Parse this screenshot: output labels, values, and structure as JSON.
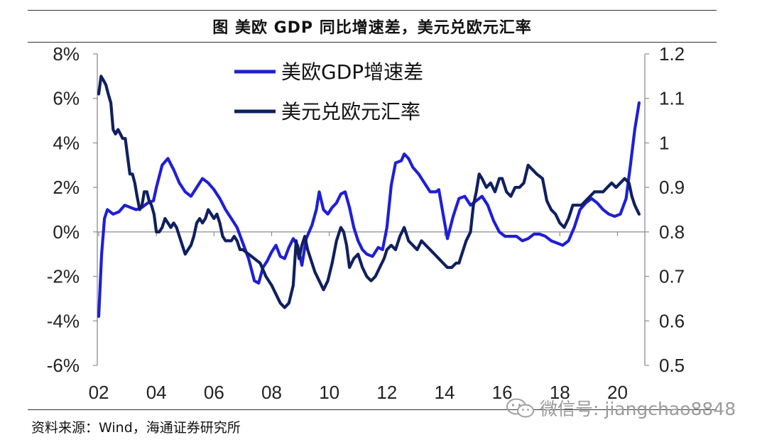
{
  "header": {
    "title": "图  美欧 GDP 同比增速差，美元兑欧元汇率"
  },
  "footer": {
    "source": "资料来源：Wind，海通证券研究所",
    "watermark": "微信号: jiangchao8848",
    "watermark_icon": "wechat-icon"
  },
  "colors": {
    "gdp_series": "#1f1fd6",
    "fx_series": "#10205e",
    "axis": "#8c8c8c",
    "text": "#222222"
  },
  "chart_data": {
    "type": "line",
    "x_tick_labels": [
      "02",
      "04",
      "06",
      "08",
      "10",
      "12",
      "14",
      "16",
      "18",
      "20"
    ],
    "x_ticks": [
      2002,
      2004,
      2006,
      2008,
      2010,
      2012,
      2014,
      2016,
      2018,
      2020
    ],
    "xlim": [
      2001.95,
      2020.95
    ],
    "y_left": {
      "ylim": [
        -6,
        8
      ],
      "ticks": [
        -6,
        -4,
        -2,
        0,
        2,
        4,
        6,
        8
      ],
      "tick_labels": [
        "-6%",
        "-4%",
        "-2%",
        "0%",
        "2%",
        "4%",
        "6%",
        "8%"
      ]
    },
    "y_right": {
      "ylim": [
        0.5,
        1.2
      ],
      "ticks": [
        0.5,
        0.6,
        0.7,
        0.8,
        0.9,
        1.0,
        1.1,
        1.2
      ],
      "tick_labels": [
        "0.5",
        "0.6",
        "0.7",
        "0.8",
        "0.9",
        "1",
        "1.1",
        "1.2"
      ]
    },
    "legend_position": "top-center",
    "grid": false,
    "series": [
      {
        "name": "美欧GDP增速差",
        "axis": "left",
        "color": "#1f1fd6",
        "points": [
          [
            2002.0,
            -3.8
          ],
          [
            2002.1,
            -1.0
          ],
          [
            2002.2,
            0.6
          ],
          [
            2002.3,
            1.0
          ],
          [
            2002.5,
            0.8
          ],
          [
            2002.7,
            0.9
          ],
          [
            2002.9,
            1.2
          ],
          [
            2003.1,
            1.1
          ],
          [
            2003.3,
            1.0
          ],
          [
            2003.5,
            1.1
          ],
          [
            2003.7,
            1.3
          ],
          [
            2003.9,
            1.4
          ],
          [
            2004.0,
            2.0
          ],
          [
            2004.2,
            3.0
          ],
          [
            2004.4,
            3.3
          ],
          [
            2004.6,
            2.8
          ],
          [
            2004.8,
            2.2
          ],
          [
            2005.0,
            1.8
          ],
          [
            2005.2,
            1.6
          ],
          [
            2005.4,
            2.0
          ],
          [
            2005.6,
            2.4
          ],
          [
            2005.8,
            2.2
          ],
          [
            2006.0,
            1.9
          ],
          [
            2006.2,
            1.5
          ],
          [
            2006.4,
            1.0
          ],
          [
            2006.6,
            0.6
          ],
          [
            2006.8,
            0.2
          ],
          [
            2007.0,
            -0.5
          ],
          [
            2007.2,
            -1.2
          ],
          [
            2007.4,
            -2.2
          ],
          [
            2007.55,
            -2.3
          ],
          [
            2007.7,
            -1.6
          ],
          [
            2007.85,
            -1.3
          ],
          [
            2008.0,
            -0.9
          ],
          [
            2008.15,
            -0.6
          ],
          [
            2008.3,
            -1.1
          ],
          [
            2008.45,
            -1.2
          ],
          [
            2008.6,
            -0.7
          ],
          [
            2008.75,
            -0.3
          ],
          [
            2008.9,
            -0.6
          ],
          [
            2009.05,
            -1.5
          ],
          [
            2009.2,
            -0.3
          ],
          [
            2009.4,
            0.3
          ],
          [
            2009.55,
            1.0
          ],
          [
            2009.65,
            1.8
          ],
          [
            2009.8,
            1.0
          ],
          [
            2009.95,
            0.8
          ],
          [
            2010.1,
            1.1
          ],
          [
            2010.25,
            1.3
          ],
          [
            2010.4,
            1.7
          ],
          [
            2010.55,
            1.8
          ],
          [
            2010.7,
            1.1
          ],
          [
            2010.85,
            0.2
          ],
          [
            2011.0,
            -0.4
          ],
          [
            2011.15,
            -0.8
          ],
          [
            2011.3,
            -1.0
          ],
          [
            2011.5,
            -1.1
          ],
          [
            2011.7,
            -0.7
          ],
          [
            2011.85,
            -0.8
          ],
          [
            2012.0,
            0.2
          ],
          [
            2012.15,
            2.1
          ],
          [
            2012.3,
            3.1
          ],
          [
            2012.5,
            3.2
          ],
          [
            2012.6,
            3.5
          ],
          [
            2012.75,
            3.3
          ],
          [
            2012.9,
            2.9
          ],
          [
            2013.1,
            2.6
          ],
          [
            2013.3,
            2.2
          ],
          [
            2013.5,
            1.8
          ],
          [
            2013.7,
            1.8
          ],
          [
            2013.8,
            1.9
          ],
          [
            2013.95,
            0.8
          ],
          [
            2014.1,
            -0.3
          ],
          [
            2014.3,
            0.7
          ],
          [
            2014.5,
            1.5
          ],
          [
            2014.7,
            1.6
          ],
          [
            2014.9,
            1.2
          ],
          [
            2015.1,
            1.4
          ],
          [
            2015.3,
            1.6
          ],
          [
            2015.5,
            1.2
          ],
          [
            2015.7,
            0.5
          ],
          [
            2015.9,
            0.0
          ],
          [
            2016.1,
            -0.2
          ],
          [
            2016.3,
            -0.2
          ],
          [
            2016.5,
            -0.2
          ],
          [
            2016.7,
            -0.4
          ],
          [
            2016.9,
            -0.3
          ],
          [
            2017.1,
            -0.1
          ],
          [
            2017.3,
            -0.1
          ],
          [
            2017.5,
            -0.2
          ],
          [
            2017.7,
            -0.4
          ],
          [
            2017.9,
            -0.5
          ],
          [
            2018.1,
            -0.6
          ],
          [
            2018.3,
            -0.4
          ],
          [
            2018.5,
            0.2
          ],
          [
            2018.7,
            1.0
          ],
          [
            2018.9,
            1.3
          ],
          [
            2019.1,
            1.5
          ],
          [
            2019.3,
            1.3
          ],
          [
            2019.5,
            1.0
          ],
          [
            2019.7,
            0.8
          ],
          [
            2019.9,
            0.7
          ],
          [
            2020.1,
            0.8
          ],
          [
            2020.3,
            1.5
          ],
          [
            2020.45,
            3.0
          ],
          [
            2020.6,
            4.6
          ],
          [
            2020.75,
            5.8
          ]
        ]
      },
      {
        "name": "美元兑欧元汇率",
        "axis": "right",
        "color": "#10205e",
        "points": [
          [
            2002.0,
            1.11
          ],
          [
            2002.08,
            1.15
          ],
          [
            2002.17,
            1.14
          ],
          [
            2002.25,
            1.13
          ],
          [
            2002.33,
            1.11
          ],
          [
            2002.42,
            1.09
          ],
          [
            2002.5,
            1.03
          ],
          [
            2002.58,
            1.02
          ],
          [
            2002.67,
            1.03
          ],
          [
            2002.75,
            1.02
          ],
          [
            2002.83,
            1.01
          ],
          [
            2002.92,
            1.01
          ],
          [
            2003.0,
            0.97
          ],
          [
            2003.08,
            0.93
          ],
          [
            2003.17,
            0.93
          ],
          [
            2003.25,
            0.91
          ],
          [
            2003.33,
            0.88
          ],
          [
            2003.42,
            0.85
          ],
          [
            2003.5,
            0.86
          ],
          [
            2003.58,
            0.89
          ],
          [
            2003.67,
            0.89
          ],
          [
            2003.75,
            0.87
          ],
          [
            2003.83,
            0.86
          ],
          [
            2003.92,
            0.84
          ],
          [
            2004.0,
            0.8
          ],
          [
            2004.1,
            0.8
          ],
          [
            2004.2,
            0.81
          ],
          [
            2004.3,
            0.83
          ],
          [
            2004.4,
            0.82
          ],
          [
            2004.5,
            0.81
          ],
          [
            2004.6,
            0.82
          ],
          [
            2004.7,
            0.81
          ],
          [
            2004.8,
            0.79
          ],
          [
            2004.9,
            0.77
          ],
          [
            2005.0,
            0.75
          ],
          [
            2005.1,
            0.76
          ],
          [
            2005.2,
            0.77
          ],
          [
            2005.3,
            0.79
          ],
          [
            2005.4,
            0.82
          ],
          [
            2005.5,
            0.83
          ],
          [
            2005.6,
            0.82
          ],
          [
            2005.7,
            0.83
          ],
          [
            2005.8,
            0.85
          ],
          [
            2005.9,
            0.84
          ],
          [
            2006.0,
            0.83
          ],
          [
            2006.1,
            0.84
          ],
          [
            2006.2,
            0.82
          ],
          [
            2006.3,
            0.79
          ],
          [
            2006.4,
            0.78
          ],
          [
            2006.5,
            0.78
          ],
          [
            2006.6,
            0.78
          ],
          [
            2006.7,
            0.79
          ],
          [
            2006.8,
            0.78
          ],
          [
            2006.9,
            0.76
          ],
          [
            2007.0,
            0.76
          ],
          [
            2007.2,
            0.75
          ],
          [
            2007.4,
            0.74
          ],
          [
            2007.6,
            0.73
          ],
          [
            2007.8,
            0.7
          ],
          [
            2008.0,
            0.68
          ],
          [
            2008.15,
            0.66
          ],
          [
            2008.3,
            0.64
          ],
          [
            2008.45,
            0.63
          ],
          [
            2008.6,
            0.64
          ],
          [
            2008.75,
            0.68
          ],
          [
            2008.85,
            0.78
          ],
          [
            2008.95,
            0.74
          ],
          [
            2009.05,
            0.77
          ],
          [
            2009.15,
            0.79
          ],
          [
            2009.25,
            0.76
          ],
          [
            2009.35,
            0.74
          ],
          [
            2009.5,
            0.71
          ],
          [
            2009.65,
            0.69
          ],
          [
            2009.8,
            0.67
          ],
          [
            2009.95,
            0.69
          ],
          [
            2010.1,
            0.73
          ],
          [
            2010.25,
            0.78
          ],
          [
            2010.4,
            0.81
          ],
          [
            2010.5,
            0.8
          ],
          [
            2010.6,
            0.77
          ],
          [
            2010.7,
            0.72
          ],
          [
            2010.85,
            0.74
          ],
          [
            2011.0,
            0.75
          ],
          [
            2011.15,
            0.72
          ],
          [
            2011.3,
            0.7
          ],
          [
            2011.45,
            0.69
          ],
          [
            2011.6,
            0.7
          ],
          [
            2011.75,
            0.72
          ],
          [
            2011.9,
            0.74
          ],
          [
            2012.0,
            0.76
          ],
          [
            2012.15,
            0.77
          ],
          [
            2012.3,
            0.76
          ],
          [
            2012.45,
            0.79
          ],
          [
            2012.6,
            0.81
          ],
          [
            2012.75,
            0.78
          ],
          [
            2012.9,
            0.77
          ],
          [
            2013.05,
            0.76
          ],
          [
            2013.2,
            0.78
          ],
          [
            2013.35,
            0.77
          ],
          [
            2013.5,
            0.76
          ],
          [
            2013.65,
            0.75
          ],
          [
            2013.8,
            0.74
          ],
          [
            2013.95,
            0.73
          ],
          [
            2014.1,
            0.72
          ],
          [
            2014.25,
            0.72
          ],
          [
            2014.4,
            0.73
          ],
          [
            2014.5,
            0.73
          ],
          [
            2014.6,
            0.75
          ],
          [
            2014.75,
            0.78
          ],
          [
            2014.9,
            0.8
          ],
          [
            2015.0,
            0.86
          ],
          [
            2015.1,
            0.89
          ],
          [
            2015.2,
            0.93
          ],
          [
            2015.3,
            0.92
          ],
          [
            2015.45,
            0.9
          ],
          [
            2015.6,
            0.91
          ],
          [
            2015.75,
            0.89
          ],
          [
            2015.9,
            0.92
          ],
          [
            2016.0,
            0.92
          ],
          [
            2016.15,
            0.89
          ],
          [
            2016.3,
            0.88
          ],
          [
            2016.45,
            0.9
          ],
          [
            2016.6,
            0.9
          ],
          [
            2016.75,
            0.91
          ],
          [
            2016.9,
            0.95
          ],
          [
            2017.05,
            0.94
          ],
          [
            2017.2,
            0.93
          ],
          [
            2017.4,
            0.92
          ],
          [
            2017.55,
            0.87
          ],
          [
            2017.7,
            0.85
          ],
          [
            2017.85,
            0.84
          ],
          [
            2018.0,
            0.82
          ],
          [
            2018.15,
            0.81
          ],
          [
            2018.3,
            0.83
          ],
          [
            2018.45,
            0.86
          ],
          [
            2018.6,
            0.86
          ],
          [
            2018.75,
            0.86
          ],
          [
            2018.9,
            0.87
          ],
          [
            2019.05,
            0.88
          ],
          [
            2019.2,
            0.89
          ],
          [
            2019.35,
            0.89
          ],
          [
            2019.5,
            0.89
          ],
          [
            2019.65,
            0.9
          ],
          [
            2019.8,
            0.91
          ],
          [
            2019.95,
            0.9
          ],
          [
            2020.1,
            0.91
          ],
          [
            2020.25,
            0.92
          ],
          [
            2020.4,
            0.91
          ],
          [
            2020.5,
            0.88
          ],
          [
            2020.6,
            0.86
          ],
          [
            2020.75,
            0.84
          ]
        ]
      }
    ]
  }
}
